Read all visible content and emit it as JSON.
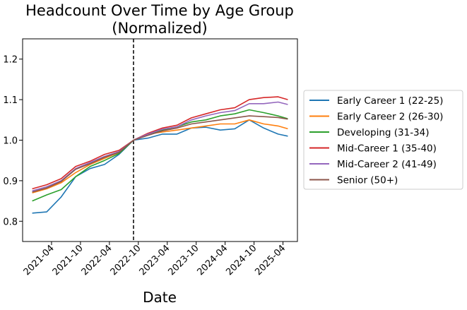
{
  "chart_data": {
    "type": "line",
    "title": "Headcount Over Time by Age Group",
    "subtitle": "(Normalized)",
    "xlabel": "Date",
    "ylabel": "",
    "x_ticks": [
      "2021-04",
      "2021-10",
      "2022-04",
      "2022-10",
      "2023-04",
      "2023-10",
      "2024-04",
      "2024-10",
      "2025-04"
    ],
    "y_ticks": [
      "0.8",
      "0.9",
      "1.0",
      "1.1",
      "1.2"
    ],
    "ylim": [
      0.75,
      1.25
    ],
    "xlim": [
      "2020-10",
      "2025-07"
    ],
    "grid": false,
    "legend_position": "right, outside plot",
    "vline": {
      "x": "2022-09",
      "style": "dashed",
      "color": "#000000"
    },
    "x": [
      "2020-12",
      "2021-03",
      "2021-06",
      "2021-09",
      "2021-12",
      "2022-03",
      "2022-06",
      "2022-09",
      "2022-12",
      "2023-03",
      "2023-06",
      "2023-09",
      "2023-12",
      "2024-03",
      "2024-06",
      "2024-09",
      "2024-12",
      "2025-03",
      "2025-05"
    ],
    "series": [
      {
        "name": "Early Career 1 (22-25)",
        "color": "#1f77b4",
        "values": [
          0.82,
          0.823,
          0.86,
          0.91,
          0.93,
          0.94,
          0.965,
          1.0,
          1.005,
          1.015,
          1.015,
          1.03,
          1.032,
          1.025,
          1.028,
          1.05,
          1.03,
          1.015,
          1.01
        ]
      },
      {
        "name": "Early Career 2 (26-30)",
        "color": "#ff7f0e",
        "values": [
          0.87,
          0.88,
          0.895,
          0.92,
          0.94,
          0.955,
          0.97,
          1.0,
          1.015,
          1.02,
          1.025,
          1.03,
          1.035,
          1.04,
          1.04,
          1.05,
          1.04,
          1.035,
          1.028
        ]
      },
      {
        "name": "Developing (31-34)",
        "color": "#2ca02c",
        "values": [
          0.85,
          0.865,
          0.878,
          0.91,
          0.935,
          0.95,
          0.967,
          1.0,
          1.015,
          1.025,
          1.033,
          1.045,
          1.05,
          1.06,
          1.065,
          1.075,
          1.068,
          1.06,
          1.053
        ]
      },
      {
        "name": "Mid-Career 1 (35-40)",
        "color": "#d62728",
        "values": [
          0.88,
          0.89,
          0.905,
          0.935,
          0.948,
          0.965,
          0.975,
          1.0,
          1.017,
          1.03,
          1.037,
          1.055,
          1.065,
          1.075,
          1.08,
          1.1,
          1.105,
          1.107,
          1.1
        ]
      },
      {
        "name": "Mid-Career 2 (41-49)",
        "color": "#9467bd",
        "values": [
          0.875,
          0.885,
          0.9,
          0.93,
          0.945,
          0.96,
          0.972,
          1.0,
          1.015,
          1.027,
          1.033,
          1.05,
          1.06,
          1.068,
          1.073,
          1.09,
          1.09,
          1.094,
          1.088
        ]
      },
      {
        "name": "Senior (50+)",
        "color": "#8c564b",
        "values": [
          0.872,
          0.882,
          0.898,
          0.928,
          0.942,
          0.958,
          0.97,
          1.0,
          1.012,
          1.023,
          1.03,
          1.04,
          1.045,
          1.05,
          1.055,
          1.06,
          1.058,
          1.056,
          1.052
        ]
      }
    ]
  }
}
